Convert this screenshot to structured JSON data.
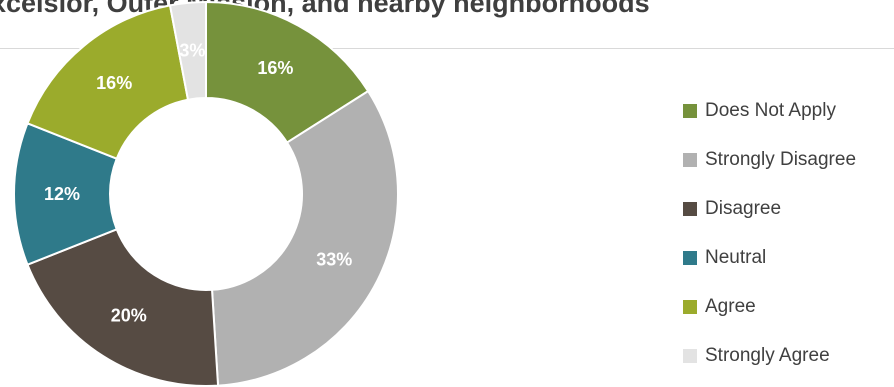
{
  "chart_data": {
    "type": "pie",
    "title": "Excelsior, Outer Mission, and nearby neighborhoods",
    "hole": "donut",
    "legend_position": "right",
    "categories": [
      "Does Not Apply",
      "Strongly Disagree",
      "Disagree",
      "Neutral",
      "Agree",
      "Strongly Agree"
    ],
    "values": [
      16,
      33,
      20,
      12,
      16,
      3
    ],
    "data_labels": [
      "16%",
      "33%",
      "20%",
      "12%",
      "16%",
      "3%"
    ],
    "colors": [
      "#76923c",
      "#b1b1b1",
      "#564b43",
      "#2f7a8a",
      "#9bab2c",
      "#e3e3e3"
    ],
    "label_colors": [
      "#ffffff",
      "#ffffff",
      "#ffffff",
      "#ffffff",
      "#ffffff",
      "#ffffff"
    ]
  }
}
